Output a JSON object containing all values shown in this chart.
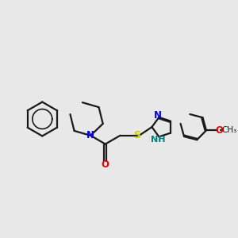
{
  "bg_color": "#e8e8e8",
  "bond_color": "#1a1a1a",
  "N_color": "#0000ee",
  "O_color": "#ee0000",
  "S_color": "#cccc00",
  "NH_color": "#008080",
  "line_width": 1.6,
  "figsize": [
    3.0,
    3.0
  ],
  "dpi": 100,
  "xlim": [
    -0.5,
    10.5
  ],
  "ylim": [
    -1.5,
    3.5
  ]
}
